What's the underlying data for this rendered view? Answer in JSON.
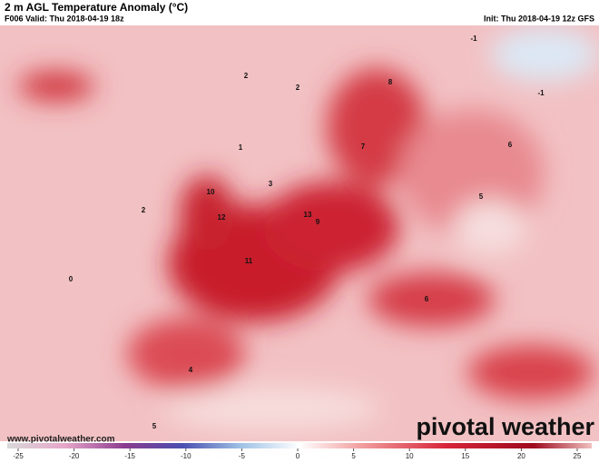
{
  "header": {
    "title": "2 m AGL Temperature Anomaly (°C)",
    "valid": "F006 Valid: Thu 2018-04-19 18z",
    "init": "Init: Thu 2018-04-19 12z GFS"
  },
  "map_labels": [
    "2",
    "2",
    "1",
    "3",
    "0",
    "12",
    "11",
    "10",
    "9",
    "8",
    "-1",
    "-1",
    "6",
    "5",
    "7",
    "4",
    "13",
    "2",
    "5",
    "6"
  ],
  "footer": {
    "website": "www.pivotalweather.com",
    "logo": "pivotal weather"
  },
  "colorbar": {
    "min": -25,
    "max": 25,
    "ticks": [
      -25,
      -20,
      -15,
      -10,
      -5,
      0,
      5,
      10,
      15,
      20,
      25
    ]
  }
}
